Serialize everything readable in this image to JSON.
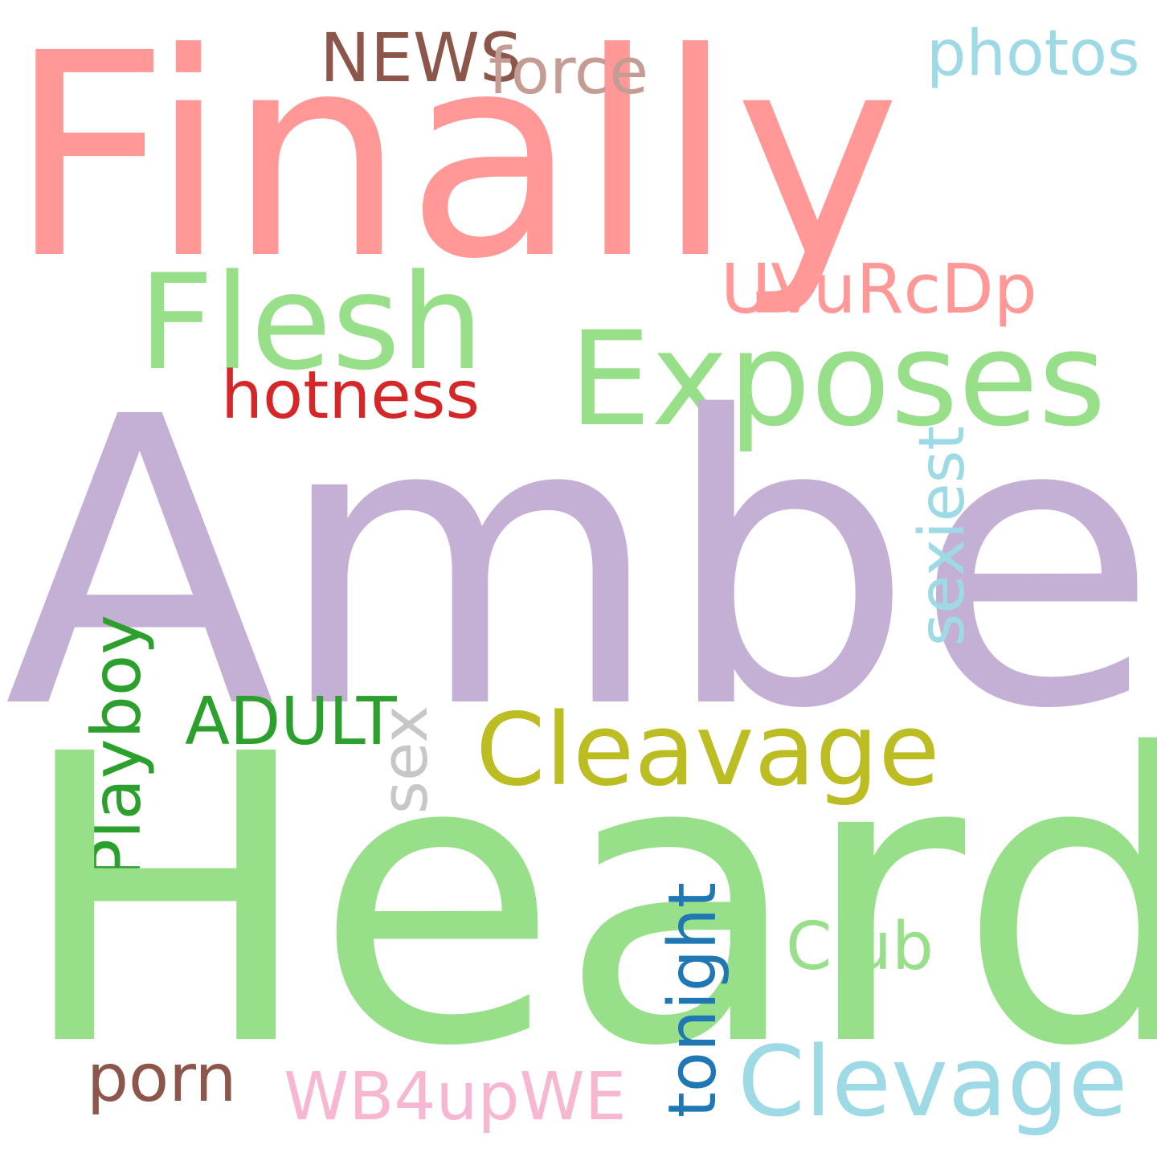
{
  "words": [
    {
      "text": "Finally",
      "color": "#ff9896"
    },
    {
      "text": "NEWS",
      "color": "#8c564b"
    },
    {
      "text": "force",
      "color": "#c49c94"
    },
    {
      "text": "photos",
      "color": "#9edae5"
    },
    {
      "text": "Flesh",
      "color": "#98df8a"
    },
    {
      "text": "UVuRcDp",
      "color": "#ff9896"
    },
    {
      "text": "Exposes",
      "color": "#98df8a"
    },
    {
      "text": "hotness",
      "color": "#d62728"
    },
    {
      "text": "Amber",
      "color": "#c5b0d5"
    },
    {
      "text": "sexiest",
      "color": "#9edae5"
    },
    {
      "text": "Playboy",
      "color": "#2ca02c"
    },
    {
      "text": "ADULT",
      "color": "#2ca02c"
    },
    {
      "text": "sex",
      "color": "#c7c7c7"
    },
    {
      "text": "Cleavage",
      "color": "#bcbd22"
    },
    {
      "text": "Heard",
      "color": "#98df8a"
    },
    {
      "text": "tonight",
      "color": "#1f77b4"
    },
    {
      "text": "Club",
      "color": "#98df8a"
    },
    {
      "text": "Clevage",
      "color": "#9edae5"
    },
    {
      "text": "porn",
      "color": "#8c564b"
    },
    {
      "text": "WB4upWE",
      "color": "#f7b6d2"
    }
  ]
}
